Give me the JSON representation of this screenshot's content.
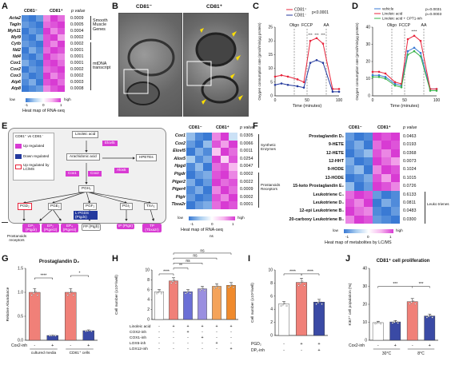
{
  "panels": {
    "A": "A",
    "B": "B",
    "C": "C",
    "D": "D",
    "E": "E",
    "F": "F",
    "G": "G",
    "H": "H",
    "I": "I",
    "J": "J"
  },
  "colors": {
    "blue": "#3a7ad4",
    "lightblue": "#a9cdf0",
    "white": "#ffffff",
    "pink": "#f7b8ef",
    "magenta": "#d83bd3",
    "red": "#e8243b",
    "darkblue": "#243a9e",
    "green": "#38b24a",
    "salmon": "#f08078",
    "navy": "#3a4aa5",
    "grey": "#999999"
  },
  "common": {
    "cd81neg": "CD81⁻",
    "cd81pos": "CD81⁺",
    "pvalue": "p value",
    "low": "low",
    "high": "high",
    "neg1": "-1",
    "zero": "0",
    "one": "1"
  },
  "A": {
    "genes": [
      "Acta2",
      "Tagln",
      "Myh11",
      "Myl9",
      "Cytb",
      "Nd2",
      "Nd4",
      "Cox1",
      "Cox2",
      "Cox3",
      "Atp6",
      "Atp8"
    ],
    "pvalues": [
      "0.0009",
      "0.0005",
      "0.0004",
      "0.0002",
      "0.0002",
      "0.0001",
      "0.0001",
      "0.0001",
      "0.0002",
      "0.0002",
      "0.0003",
      "0.0008"
    ],
    "group1": "Smooth Muscle Genes",
    "group2": "mtDNA transcript",
    "caption": "Heat map of RNA-seq",
    "matrix": [
      [
        -0.9,
        -1,
        -0.8,
        0.7,
        1,
        0.8
      ],
      [
        -0.8,
        -0.9,
        -1,
        0.8,
        0.9,
        1
      ],
      [
        -1,
        -0.8,
        -0.9,
        1,
        0.7,
        0.9
      ],
      [
        -0.9,
        -1,
        -0.7,
        0.9,
        1,
        0.6
      ],
      [
        -0.8,
        -0.9,
        -1,
        0.9,
        0.7,
        1
      ],
      [
        -1,
        -0.7,
        -0.9,
        0.8,
        1,
        0.9
      ],
      [
        -0.9,
        -1,
        -0.8,
        1,
        0.8,
        0.7
      ],
      [
        -0.7,
        -0.9,
        -1,
        0.9,
        1,
        0.8
      ],
      [
        -1,
        -0.8,
        -0.9,
        0.8,
        0.9,
        1
      ],
      [
        -0.8,
        -1,
        -0.9,
        1,
        0.7,
        0.9
      ],
      [
        -0.9,
        -0.7,
        -1,
        0.9,
        1,
        0.8
      ],
      [
        -1,
        -0.9,
        -0.8,
        0.7,
        0.9,
        1
      ]
    ]
  },
  "B": {
    "neg": "CD81⁻",
    "pos": "CD81⁺"
  },
  "C": {
    "ylabel": "Oxygen consumption rate (pmol/min/µg protein)",
    "xlabel": "Time (minutes)",
    "oligo": "Oligo",
    "fccp": "FCCP",
    "aa": "AA",
    "pval": "p<0.0001",
    "legend": [
      "CD81⁺",
      "CD81⁻"
    ],
    "ticks_y": [
      "0",
      "5",
      "10",
      "15",
      "20",
      "25"
    ],
    "ticks_x": [
      "0",
      "50",
      "100"
    ],
    "stars": [
      "***",
      "***",
      "***"
    ]
  },
  "D": {
    "ylabel": "Oxygen consumption rate (pmol/min/µg protein)",
    "xlabel": "Time (minutes)",
    "oligo": "Oligo",
    "fccp": "FCCP",
    "aa": "AA",
    "p1": "p=0.0031",
    "p2": "p=0.0003",
    "legend": [
      "vehicle",
      "Linoleic acid",
      "Linoleic acid + CPT1-inh"
    ],
    "ticks_y": [
      "0",
      "10",
      "20",
      "30",
      "40"
    ],
    "ticks_x": [
      "0",
      "50",
      "100"
    ],
    "stars": [
      "****"
    ]
  },
  "E": {
    "legend_title": "CD81⁺ vs CD81⁻",
    "leg_up": "Up regulated",
    "leg_down": "Down regulated",
    "leg_lcms": "Up regulated by LC/MS",
    "la": "Linoleic acid",
    "aa": "Arachidonic acid",
    "hpetes": "HPETEs",
    "pgh2": "PGH₂",
    "elovl5": "Elovl5",
    "cox1": "Cox1",
    "cox2": "Cox2",
    "alox5": "Alox5",
    "pgd2": "PGD₂",
    "pge2": "PGE₂",
    "pgf2": "PGF₂",
    "pgi2": "PGI₂",
    "txa2": "TXA₂",
    "ptgds": "L-PGDS (Ptgds)",
    "receptors": [
      "DP₁ (Ptgdr)",
      "EP₂ (Ptger2)",
      "EP₄ (Ptger4)",
      "FP (Ptgfr)",
      "IP (Ptgir)",
      "TP (Tbxa2r)"
    ],
    "receptor_label": "Prostanoids receptors",
    "genes": [
      "Cox1",
      "Cox2",
      "Elovl5",
      "Alox5",
      "Hpgd",
      "Ptgdr",
      "Ptger2",
      "Ptger4",
      "Ptgir",
      "Tbxa2r"
    ],
    "pvalues": [
      "0.0305",
      "0.0066",
      "0.0011",
      "0.0254",
      "0.0047",
      "0.0002",
      "0.0022",
      "0.0009",
      "0.0002",
      "0.0001"
    ],
    "group1": "Synthetic Enzymes",
    "group2": "Prostanoids Receptors",
    "caption": "Heat map of RNA-seq",
    "ns": "ns",
    "matrix": [
      [
        -0.6,
        -0.9,
        -1,
        0.7,
        1,
        -0.3
      ],
      [
        -0.8,
        -1,
        -0.6,
        0.9,
        0.6,
        1
      ],
      [
        -1,
        -0.7,
        -0.9,
        0.4,
        1,
        0.8
      ],
      [
        -0.5,
        -0.9,
        -0.7,
        1,
        0.3,
        0.9
      ],
      [
        -0.9,
        -0.6,
        -1,
        0.8,
        0.9,
        0.5
      ],
      [
        -1,
        -0.8,
        -0.7,
        0.9,
        1,
        0.7
      ],
      [
        -0.7,
        -1,
        -0.8,
        1,
        0.8,
        0.9
      ],
      [
        -0.9,
        -0.7,
        -1,
        0.7,
        1,
        0.8
      ],
      [
        -0.8,
        -1,
        -0.9,
        0.9,
        0.7,
        1
      ],
      [
        -1,
        -0.8,
        -0.7,
        0.8,
        1,
        0.9
      ]
    ]
  },
  "F": {
    "metabolites": [
      "Prostaglandin D₂",
      "9-HETE",
      "12-HETE",
      "12-HHT",
      "9-HODE",
      "13-HODE",
      "15-keto Prostaglandin E₂",
      "Leukotriene C₄",
      "Leukotriene D₄",
      "12-epi Leukotriene B₄",
      "20-carboxy Leukotriene B₄"
    ],
    "pvalues": [
      "0.0463",
      "0.0193",
      "0.0368",
      "0.0073",
      "0.1024",
      "0.1015",
      "0.0726",
      "0.6133",
      "0.0811",
      "0.0483",
      "0.0300"
    ],
    "group": "Leuko trienes",
    "caption": "Heat map of metabolites by LC/MS",
    "matrix": [
      [
        -0.8,
        -1,
        -0.9,
        1,
        0.9,
        1
      ],
      [
        -0.9,
        -0.7,
        -1,
        0.8,
        1,
        0.9
      ],
      [
        -1,
        -0.8,
        -0.6,
        0.9,
        0.7,
        1
      ],
      [
        -0.7,
        -1,
        -0.9,
        1,
        0.8,
        0.6
      ],
      [
        -0.8,
        -0.6,
        -1,
        0.7,
        1,
        0.9
      ],
      [
        -1,
        -0.9,
        -0.7,
        0.9,
        0.6,
        1
      ],
      [
        -0.6,
        -1,
        -0.8,
        1,
        0.9,
        0.7
      ],
      [
        0.8,
        1,
        0.9,
        -0.8,
        -1,
        -0.9
      ],
      [
        0.9,
        0.7,
        1,
        -1,
        -0.7,
        -0.9
      ],
      [
        1,
        0.8,
        0.7,
        -0.9,
        -1,
        -0.8
      ],
      [
        0.7,
        1,
        0.9,
        -0.8,
        -0.9,
        -1
      ]
    ]
  },
  "G": {
    "title": "Prostaglandin D₂",
    "ylabel": "Relative Abundance",
    "xlabel": "Cox2-inh",
    "groups": [
      "cultured media",
      "CD81⁺ cells"
    ],
    "signs": [
      "-",
      "+",
      "-",
      "+"
    ],
    "ticks": [
      "0.0",
      "0.5",
      "1.0",
      "1.5"
    ],
    "stars": [
      "****",
      "*"
    ]
  },
  "H": {
    "ylabel": "Cell number (x10⁴/well)",
    "rows": [
      "Linoleic acid",
      "COX2-inh",
      "COX1-inh",
      "LOX5-inh",
      "LOX12-inh"
    ],
    "signs": [
      [
        "-",
        "+",
        "+",
        "+",
        "+",
        "+"
      ],
      [
        "-",
        "-",
        "+",
        "-",
        "-",
        "-"
      ],
      [
        "-",
        "-",
        "-",
        "+",
        "-",
        "-"
      ],
      [
        "-",
        "-",
        "-",
        "-",
        "+",
        "-"
      ],
      [
        "-",
        "-",
        "-",
        "-",
        "-",
        "+"
      ]
    ],
    "ticks": [
      "0",
      "2",
      "4",
      "6",
      "8",
      "10"
    ],
    "stars": [
      "****",
      "**",
      "ns",
      "ns",
      "ns"
    ]
  },
  "I": {
    "ylabel": "Cell number (x10⁴/well)",
    "rows": [
      "PGD₂",
      "DP₁-inh"
    ],
    "signs": [
      [
        "-",
        "+",
        "+"
      ],
      [
        "-",
        "-",
        "+"
      ]
    ],
    "ticks": [
      "0",
      "2",
      "4",
      "6",
      "8",
      "10"
    ],
    "stars": [
      "****",
      "****"
    ]
  },
  "J": {
    "title": "CD81⁺ cell proliferation",
    "ylabel": "Ki67⁺ cell population (%)",
    "xlabel": "Cox2-inh",
    "signs": [
      "-",
      "+",
      "-",
      "+"
    ],
    "temps": [
      "30°C",
      "8°C"
    ],
    "ticks": [
      "0",
      "10",
      "20",
      "30",
      "40"
    ],
    "stars": [
      "***",
      "***"
    ]
  },
  "chart_data": [
    {
      "type": "line",
      "panel": "C",
      "x": [
        0,
        10,
        20,
        35,
        45,
        55,
        65,
        75,
        90,
        100
      ],
      "series": [
        {
          "name": "CD81⁺",
          "values": [
            7,
            7.5,
            7,
            6,
            5,
            20,
            21,
            19,
            2.5,
            2.5
          ]
        },
        {
          "name": "CD81⁻",
          "values": [
            4,
            4.5,
            4,
            3.5,
            3,
            12,
            13,
            12,
            1.5,
            1.5
          ]
        }
      ],
      "ylim": [
        0,
        25
      ],
      "xlim": [
        0,
        100
      ]
    },
    {
      "type": "line",
      "panel": "D",
      "x": [
        0,
        10,
        20,
        35,
        45,
        55,
        65,
        75,
        90,
        100
      ],
      "series": [
        {
          "name": "vehicle",
          "values": [
            12,
            12,
            11,
            7,
            6,
            26,
            28,
            25,
            4,
            4
          ]
        },
        {
          "name": "Linoleic acid",
          "values": [
            14,
            14,
            13,
            8,
            7,
            33,
            35,
            32,
            4,
            4
          ]
        },
        {
          "name": "Linoleic acid + CPT1-inh",
          "values": [
            11,
            11,
            10,
            6,
            5,
            24,
            26,
            23,
            3,
            3
          ]
        }
      ],
      "ylim": [
        0,
        40
      ],
      "xlim": [
        0,
        100
      ]
    },
    {
      "type": "bar",
      "panel": "G",
      "categories": [
        "media -",
        "media +",
        "cells -",
        "cells +"
      ],
      "values": [
        1.0,
        0.1,
        1.0,
        0.2
      ],
      "ylim": [
        0,
        1.5
      ]
    },
    {
      "type": "bar",
      "panel": "H",
      "categories": [
        "1",
        "2",
        "3",
        "4",
        "5",
        "6"
      ],
      "values": [
        5.6,
        7.8,
        5.6,
        6.2,
        6.7,
        6.9
      ],
      "ylim": [
        0,
        10
      ]
    },
    {
      "type": "bar",
      "panel": "I",
      "categories": [
        "1",
        "2",
        "3"
      ],
      "values": [
        4.8,
        8.1,
        5.1
      ],
      "ylim": [
        0,
        10
      ]
    },
    {
      "type": "bar",
      "panel": "J",
      "categories": [
        "30°C -",
        "30°C +",
        "8°C -",
        "8°C +"
      ],
      "values": [
        9.8,
        10.2,
        21.5,
        13.5
      ],
      "ylim": [
        0,
        40
      ]
    }
  ]
}
